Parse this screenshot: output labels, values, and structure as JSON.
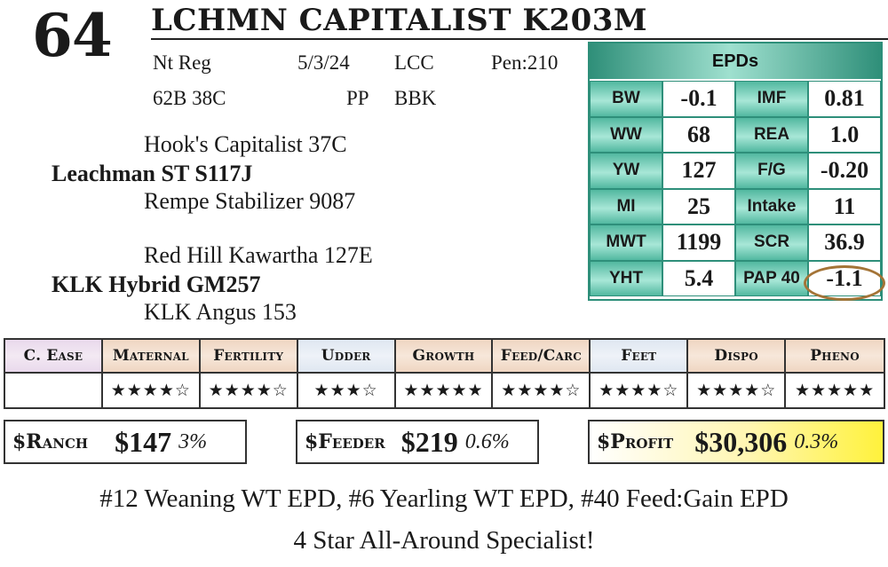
{
  "lot": "64",
  "name": "LCHMN CAPITALIST K203M",
  "info": {
    "reg": "Nt Reg",
    "dob": "5/3/24",
    "code": "LCC",
    "pen": "Pen:210",
    "tattoo": "62B 38C",
    "pp": "PP",
    "color": "BBK"
  },
  "pedigree": {
    "sire_sire": "Hook's Capitalist 37C",
    "sire": "Leachman ST S117J",
    "sire_dam": "Rempe Stabilizer 9087",
    "dam_sire": "Red Hill Kawartha 127E",
    "dam": "KLK Hybrid GM257",
    "dam_dam": "KLK Angus 153"
  },
  "epd_title": "EPDs",
  "epds": [
    {
      "l1": "BW",
      "v1": "-0.1",
      "l2": "IMF",
      "v2": "0.81"
    },
    {
      "l1": "WW",
      "v1": "68",
      "l2": "REA",
      "v2": "1.0"
    },
    {
      "l1": "YW",
      "v1": "127",
      "l2": "F/G",
      "v2": "-0.20"
    },
    {
      "l1": "MI",
      "v1": "25",
      "l2": "Intake",
      "v2": "11"
    },
    {
      "l1": "MWT",
      "v1": "1199",
      "l2": "SCR",
      "v2": "36.9"
    },
    {
      "l1": "YHT",
      "v1": "5.4",
      "l2": "PAP 40",
      "v2": "-1.1"
    }
  ],
  "ratings": {
    "headers": [
      "C. Ease",
      "Maternal",
      "Fertility",
      "Udder",
      "Growth",
      "Feed/Carc",
      "Feet",
      "Dispo",
      "Pheno"
    ],
    "stars": [
      "",
      "★★★★☆",
      "★★★★☆",
      "★★★☆",
      "★★★★★",
      "★★★★☆",
      "★★★★☆",
      "★★★★☆",
      "★★★★★"
    ]
  },
  "indexes": {
    "ranch": {
      "label": "$Ranch",
      "value": "$147",
      "pct": "3%"
    },
    "feeder": {
      "label": "$Feeder",
      "value": "$219",
      "pct": "0.6%"
    },
    "profit": {
      "label": "$Profit",
      "value": "$30,306",
      "pct": "0.3%"
    }
  },
  "notes": {
    "line1": "#12 Weaning WT EPD, #6 Yearling WT EPD, #40 Feed:Gain EPD",
    "line2": "4 Star All-Around Specialist!"
  },
  "colors": {
    "epd_accent": "#2e8f7a",
    "circle": "#a47437",
    "profit_highlight": "#fff23c"
  }
}
